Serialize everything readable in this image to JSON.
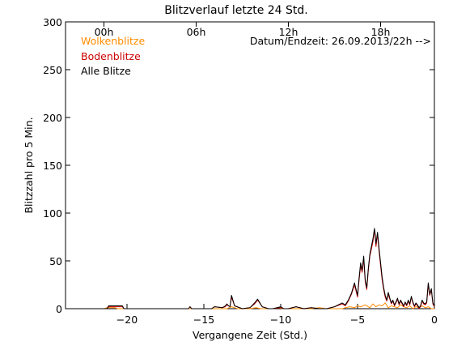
{
  "chart_data": {
    "type": "line",
    "title": "Blitzverlauf letzte 24 Std.",
    "xlabel": "Vergangene Zeit (Std.)",
    "ylabel": "Blitzzahl pro 5 Min.",
    "xlim": [
      -24,
      0
    ],
    "ylim": [
      0,
      300
    ],
    "x_ticks": [
      -20,
      -15,
      -10,
      -5,
      0
    ],
    "x_tick_labels": [
      "−20",
      "−15",
      "−10",
      "−5",
      "0"
    ],
    "y_ticks": [
      0,
      50,
      100,
      150,
      200,
      250,
      300
    ],
    "top_ticks": [
      {
        "x": -21.5,
        "label": "00h"
      },
      {
        "x": -15.5,
        "label": "06h"
      },
      {
        "x": -9.5,
        "label": "12h"
      },
      {
        "x": -3.5,
        "label": "18h"
      }
    ],
    "annotation": "Datum/Endzeit: 26.09.2013/22h -->",
    "legend_position": "top-left",
    "grid": false,
    "colors": {
      "wolken": "#ff8c00",
      "boden": "#cc0000",
      "alle": "#000000"
    },
    "series": [
      {
        "name": "Wolkenblitze",
        "color": "#ff8c00",
        "x": [
          -24,
          -21.5,
          -21.3,
          -20.8,
          -20.6,
          -16,
          -15.8,
          -13.5,
          -13.2,
          -13.0,
          -12.8,
          -12.0,
          -11.6,
          -11.3,
          -10.5,
          -10.2,
          -9.8,
          -8.0,
          -7.5,
          -7.0,
          -6.0,
          -5.8,
          -5.5,
          -5.2,
          -5.0,
          -4.8,
          -4.5,
          -4.2,
          -4.0,
          -3.8,
          -3.6,
          -3.4,
          -3.2,
          -3.0,
          -2.8,
          -2.6,
          -2.4,
          -2.2,
          -2.0,
          -1.8,
          -1.6,
          -1.4,
          -1.2,
          -1.0,
          -0.8,
          -0.6,
          -0.4,
          -0.2,
          0
        ],
        "values": [
          0,
          0,
          1,
          1,
          0,
          0,
          0,
          0,
          2,
          1,
          0,
          0,
          1,
          0,
          0,
          1,
          0,
          0,
          1,
          0,
          0,
          1,
          2,
          1,
          3,
          2,
          4,
          1,
          5,
          2,
          4,
          3,
          6,
          1,
          3,
          2,
          1,
          4,
          2,
          1,
          3,
          0,
          2,
          1,
          3,
          1,
          2,
          0,
          0
        ]
      },
      {
        "name": "Bodenblitze",
        "color": "#cc0000",
        "x": [
          -24,
          -21.3,
          -21.2,
          -20.3,
          -20.2,
          -16,
          -15.9,
          -15.8,
          -14.5,
          -14.3,
          -13.8,
          -13.6,
          -13.5,
          -13.4,
          -13.3,
          -13.2,
          -13.0,
          -12.5,
          -12.0,
          -11.7,
          -11.5,
          -11.2,
          -10.8,
          -10.5,
          -10.0,
          -9.8,
          -9.5,
          -9.0,
          -8.5,
          -8.0,
          -7.5,
          -7.0,
          -6.5,
          -6.0,
          -5.8,
          -5.6,
          -5.4,
          -5.2,
          -5.0,
          -4.9,
          -4.8,
          -4.7,
          -4.6,
          -4.5,
          -4.4,
          -4.3,
          -4.2,
          -4.1,
          -4.0,
          -3.9,
          -3.85,
          -3.8,
          -3.7,
          -3.6,
          -3.5,
          -3.4,
          -3.3,
          -3.2,
          -3.1,
          -3.0,
          -2.9,
          -2.8,
          -2.7,
          -2.6,
          -2.5,
          -2.4,
          -2.3,
          -2.2,
          -2.1,
          -2.0,
          -1.9,
          -1.8,
          -1.7,
          -1.6,
          -1.5,
          -1.4,
          -1.3,
          -1.2,
          -1.1,
          -1.0,
          -0.9,
          -0.8,
          -0.7,
          -0.6,
          -0.5,
          -0.4,
          -0.3,
          -0.2,
          -0.1,
          0
        ],
        "values": [
          0,
          0,
          2,
          2,
          0,
          0,
          2,
          0,
          0,
          2,
          1,
          2,
          4,
          3,
          2,
          12,
          3,
          0,
          1,
          5,
          9,
          2,
          0,
          0,
          1,
          0,
          0,
          2,
          0,
          1,
          0,
          0,
          2,
          5,
          3,
          8,
          15,
          25,
          12,
          30,
          45,
          38,
          52,
          28,
          20,
          40,
          55,
          62,
          70,
          82,
          75,
          65,
          78,
          60,
          45,
          30,
          20,
          12,
          8,
          15,
          10,
          5,
          8,
          3,
          6,
          10,
          4,
          8,
          5,
          2,
          6,
          3,
          8,
          4,
          12,
          6,
          2,
          5,
          3,
          0,
          2,
          8,
          5,
          4,
          6,
          25,
          14,
          20,
          5,
          2
        ]
      },
      {
        "name": "Alle Blitze",
        "color": "#000000",
        "x": [
          -24,
          -21.3,
          -21.2,
          -20.3,
          -20.2,
          -16,
          -15.9,
          -15.8,
          -14.5,
          -14.3,
          -13.8,
          -13.6,
          -13.5,
          -13.4,
          -13.3,
          -13.2,
          -13.0,
          -12.5,
          -12.0,
          -11.7,
          -11.5,
          -11.2,
          -10.8,
          -10.5,
          -10.0,
          -9.8,
          -9.5,
          -9.0,
          -8.5,
          -8.0,
          -7.5,
          -7.0,
          -6.5,
          -6.0,
          -5.8,
          -5.6,
          -5.4,
          -5.2,
          -5.0,
          -4.9,
          -4.8,
          -4.7,
          -4.6,
          -4.5,
          -4.4,
          -4.3,
          -4.2,
          -4.1,
          -4.0,
          -3.9,
          -3.85,
          -3.8,
          -3.7,
          -3.6,
          -3.5,
          -3.4,
          -3.3,
          -3.2,
          -3.1,
          -3.0,
          -2.9,
          -2.8,
          -2.7,
          -2.6,
          -2.5,
          -2.4,
          -2.3,
          -2.2,
          -2.1,
          -2.0,
          -1.9,
          -1.8,
          -1.7,
          -1.6,
          -1.5,
          -1.4,
          -1.3,
          -1.2,
          -1.1,
          -1.0,
          -0.9,
          -0.8,
          -0.7,
          -0.6,
          -0.5,
          -0.4,
          -0.3,
          -0.2,
          -0.1,
          0
        ],
        "values": [
          0,
          0,
          3,
          3,
          0,
          0,
          2,
          0,
          0,
          2,
          1,
          3,
          5,
          3,
          2,
          14,
          3,
          0,
          1,
          6,
          10,
          2,
          0,
          0,
          2,
          0,
          0,
          2,
          0,
          1,
          0,
          0,
          2,
          6,
          4,
          9,
          16,
          27,
          14,
          32,
          48,
          40,
          55,
          30,
          22,
          42,
          57,
          65,
          73,
          84,
          78,
          68,
          80,
          63,
          48,
          33,
          22,
          14,
          9,
          17,
          11,
          6,
          9,
          4,
          7,
          11,
          5,
          9,
          6,
          3,
          7,
          4,
          9,
          5,
          13,
          7,
          3,
          6,
          4,
          1,
          3,
          9,
          6,
          5,
          7,
          27,
          15,
          21,
          6,
          3
        ]
      }
    ]
  }
}
